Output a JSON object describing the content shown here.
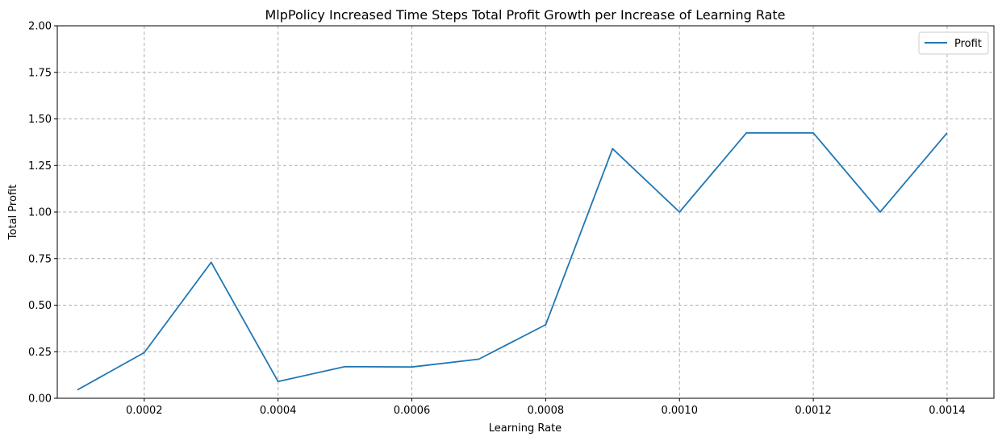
{
  "chart_data": {
    "type": "line",
    "title": "MlpPolicy Increased Time Steps Total Profit Growth per Increase of Learning Rate",
    "xlabel": "Learning Rate",
    "ylabel": "Total Profit",
    "xlim": [
      7e-05,
      0.00147
    ],
    "ylim": [
      0,
      2
    ],
    "xticks": [
      0.0002,
      0.0004,
      0.0006,
      0.0008,
      0.001,
      0.0012,
      0.0014
    ],
    "xtick_labels": [
      "0.0002",
      "0.0004",
      "0.0006",
      "0.0008",
      "0.0010",
      "0.0012",
      "0.0014"
    ],
    "yticks": [
      0,
      0.25,
      0.5,
      0.75,
      1.0,
      1.25,
      1.5,
      1.75,
      2.0
    ],
    "ytick_labels": [
      "0.00",
      "0.25",
      "0.50",
      "0.75",
      "1.00",
      "1.25",
      "1.50",
      "1.75",
      "2.00"
    ],
    "grid": true,
    "legend_position": "top-right",
    "color": "#1f77b4",
    "series": [
      {
        "name": "Profit",
        "x": [
          0.0001,
          0.0002,
          0.0003,
          0.0004,
          0.0005,
          0.0006,
          0.0007,
          0.0008,
          0.0009,
          0.001,
          0.0011,
          0.0012,
          0.0013,
          0.0014
        ],
        "values": [
          0.045,
          0.245,
          0.73,
          0.09,
          0.17,
          0.168,
          0.21,
          0.395,
          1.34,
          1.0,
          1.425,
          1.425,
          1.0,
          1.425
        ]
      }
    ]
  }
}
